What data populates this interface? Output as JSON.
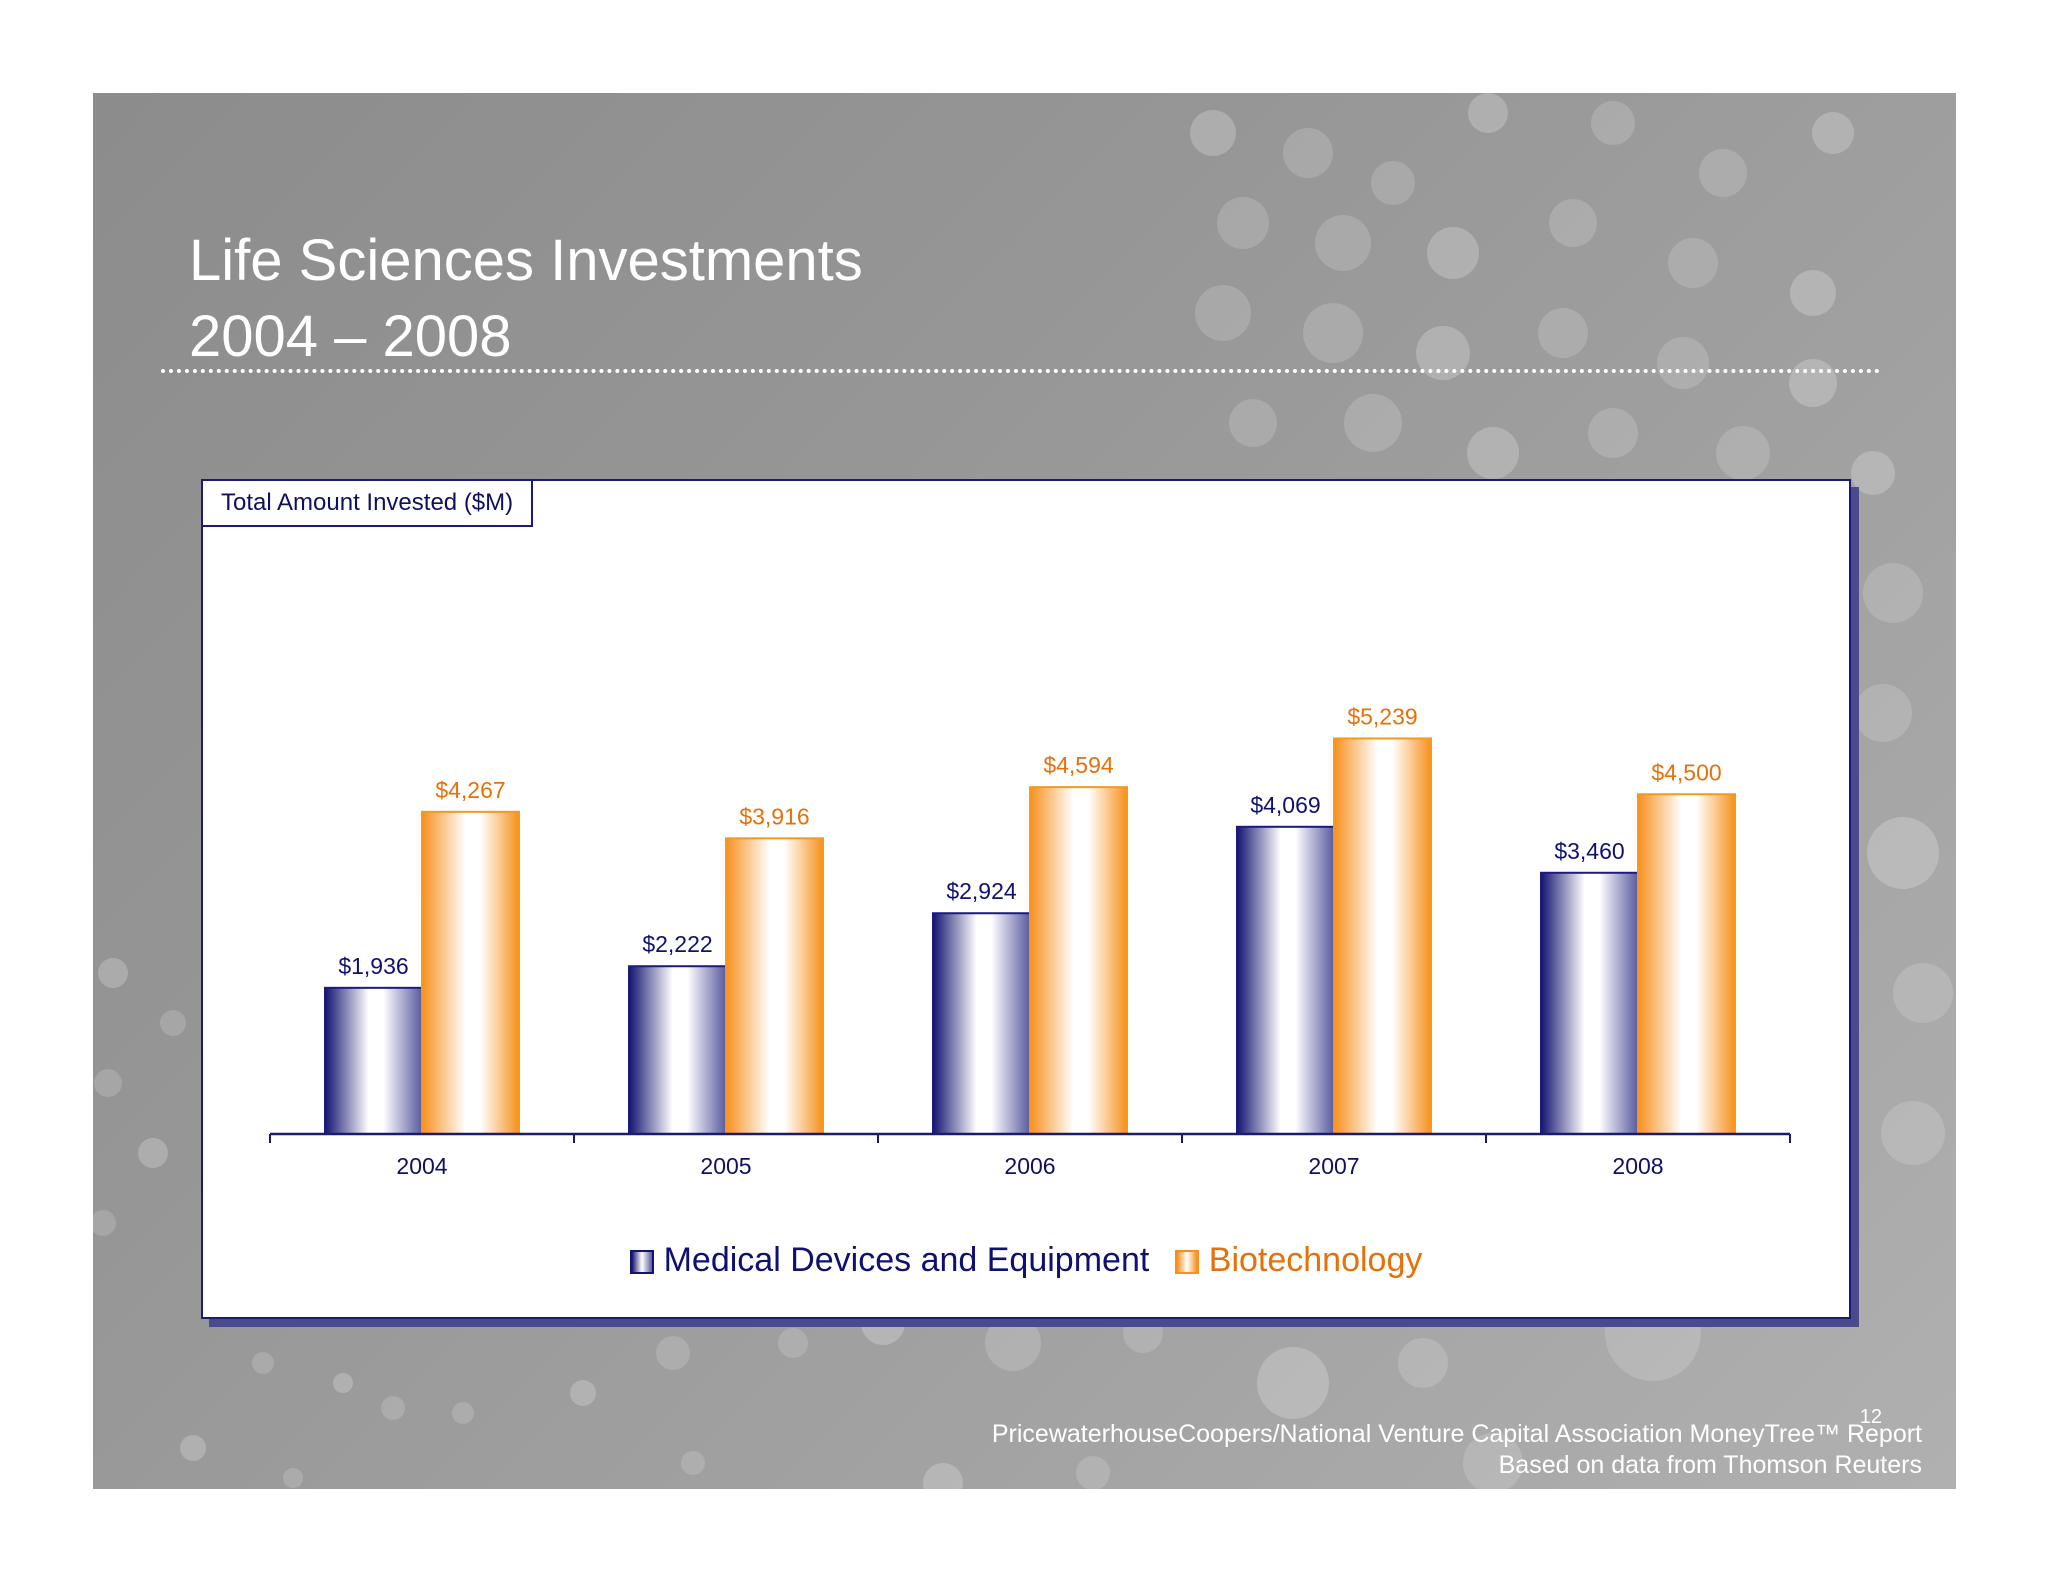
{
  "slide": {
    "title_line1": "Life Sciences Investments",
    "title_line2": "2004 – 2008",
    "page_number": "12",
    "source_line1": "PricewaterhouseCoopers/National Venture Capital Association MoneyTree™ Report",
    "source_line2": "Based on data from Thomson Reuters"
  },
  "colors": {
    "series_navy": "#1a1a80",
    "series_orange": "#f39a1e",
    "label_navy": "#101070",
    "label_orange": "#e8700a"
  },
  "chart_data": {
    "type": "bar",
    "title": "Total Amount Invested ($M)",
    "categories": [
      "2004",
      "2005",
      "2006",
      "2007",
      "2008"
    ],
    "series": [
      {
        "name": "Medical Devices and Equipment",
        "values": [
          1936,
          2222,
          2924,
          4069,
          3460
        ],
        "labels": [
          "$1,936",
          "$2,222",
          "$2,924",
          "$4,069",
          "$3,460"
        ]
      },
      {
        "name": "Biotechnology",
        "values": [
          4267,
          3916,
          4594,
          5239,
          4500
        ],
        "labels": [
          "$4,267",
          "$3,916",
          "$4,594",
          "$5,239",
          "$4,500"
        ]
      }
    ],
    "xlabel": "",
    "ylabel": "",
    "ylim": [
      0,
      6000
    ],
    "legend": "bottom"
  }
}
